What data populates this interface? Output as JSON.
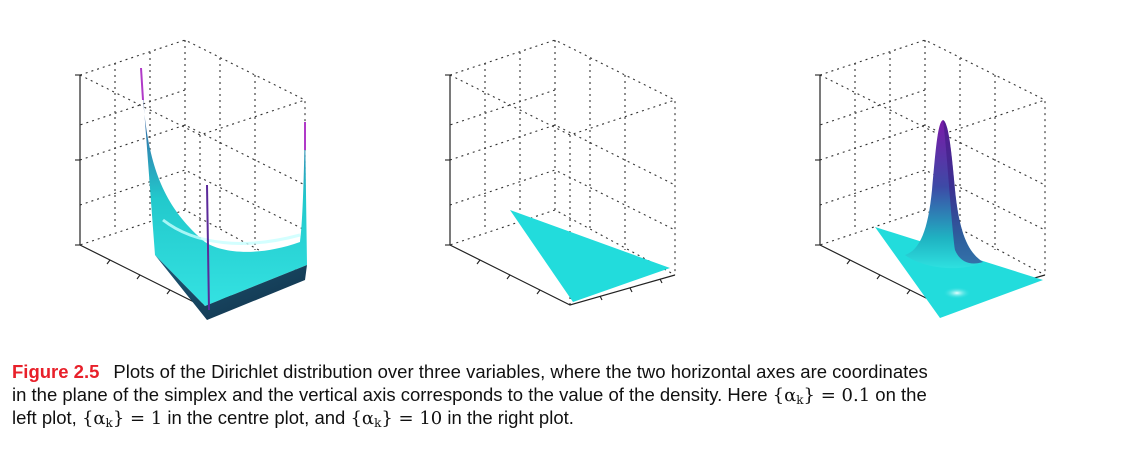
{
  "figure": {
    "panels": [
      {
        "id": "left",
        "alpha": 0.1,
        "shape": "density diverging toward the simplex corners"
      },
      {
        "id": "centre",
        "alpha": 1,
        "shape": "uniform density over the simplex"
      },
      {
        "id": "right",
        "alpha": 10,
        "shape": "density peaked at the simplex centre"
      }
    ],
    "colors": {
      "surface_light": "#33e0e0",
      "surface_mid": "#1fbfc4",
      "surface_dark": "#1e3c6a",
      "peak_purple": "#7a1aa8",
      "flat_cyan": "#22dcdc"
    }
  },
  "caption": {
    "label": "Figure 2.5",
    "line1_text": "Plots of the Dirichlet distribution over three variables, where the two horizontal axes are coordinates",
    "line2_text": "in the plane of the simplex and the vertical axis corresponds to the value of the density. Here",
    "line2_math_set": "{α",
    "line2_math_sub": "k",
    "line2_math_rest": "} = 0.1",
    "line2_tail": "on the",
    "line3_start": "left plot,",
    "line3_math1_set": "{α",
    "line3_math1_sub": "k",
    "line3_math1_rest": "} = 1",
    "line3_mid": "in the centre plot, and",
    "line3_math2_set": "{α",
    "line3_math2_sub": "k",
    "line3_math2_rest": "} = 10",
    "line3_end": "in the right plot."
  }
}
